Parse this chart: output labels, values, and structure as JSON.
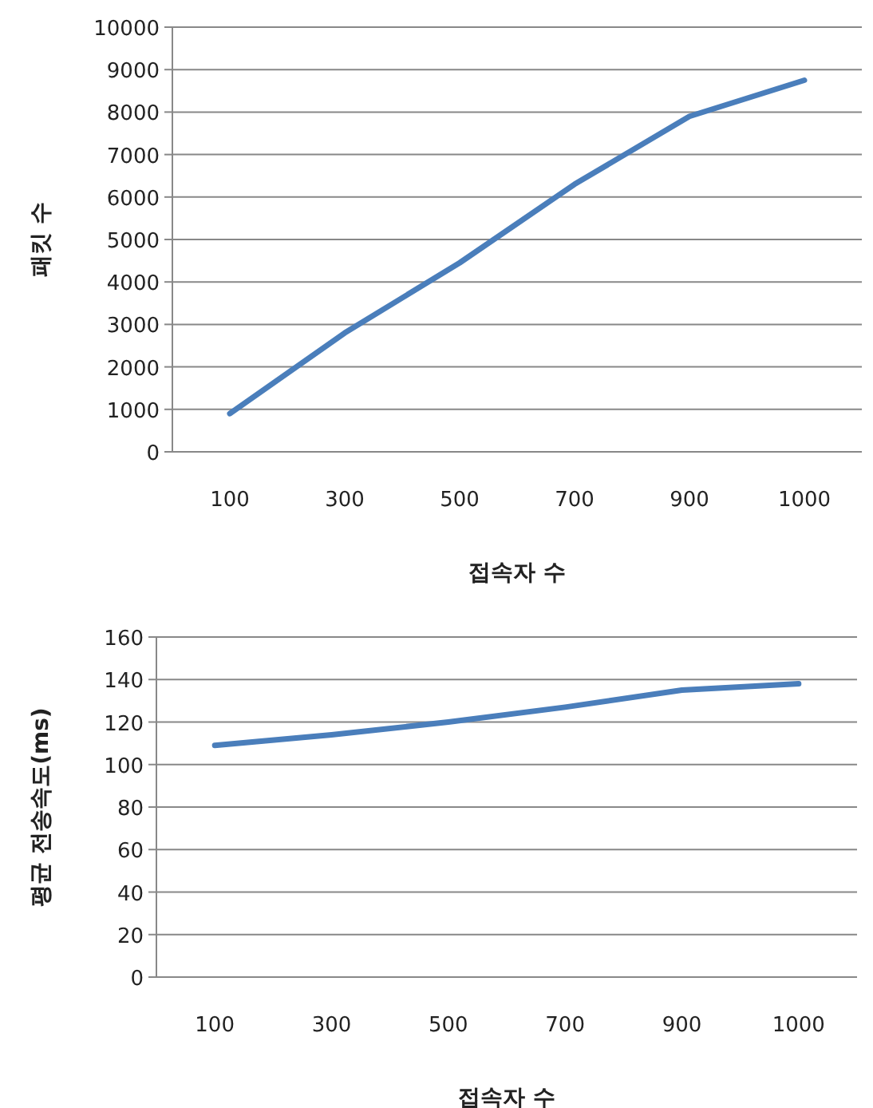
{
  "chart_data": [
    {
      "type": "line",
      "ylabel": "패킷 수",
      "xlabel": "접속자 수",
      "categories": [
        "100",
        "300",
        "500",
        "700",
        "900",
        "1000"
      ],
      "series": [
        {
          "color": "#4a7ebb",
          "values": [
            900,
            2800,
            4450,
            6300,
            7900,
            8750
          ]
        }
      ],
      "ylim": [
        0,
        10000
      ],
      "yticks": [
        0,
        1000,
        2000,
        3000,
        4000,
        5000,
        6000,
        7000,
        8000,
        9000,
        10000
      ],
      "grid": "y",
      "marker": "none",
      "line_style": "solid"
    },
    {
      "type": "line",
      "ylabel": "평균 전송속도(ms)",
      "xlabel": "접속자 수",
      "categories": [
        "100",
        "300",
        "500",
        "700",
        "900",
        "1000"
      ],
      "series": [
        {
          "color": "#4a7ebb",
          "values": [
            109,
            114,
            120,
            127,
            135,
            138
          ]
        }
      ],
      "ylim": [
        0,
        160
      ],
      "yticks": [
        0,
        20,
        40,
        60,
        80,
        100,
        120,
        140,
        160
      ],
      "grid": "y",
      "marker": "none",
      "line_style": "solid"
    }
  ]
}
